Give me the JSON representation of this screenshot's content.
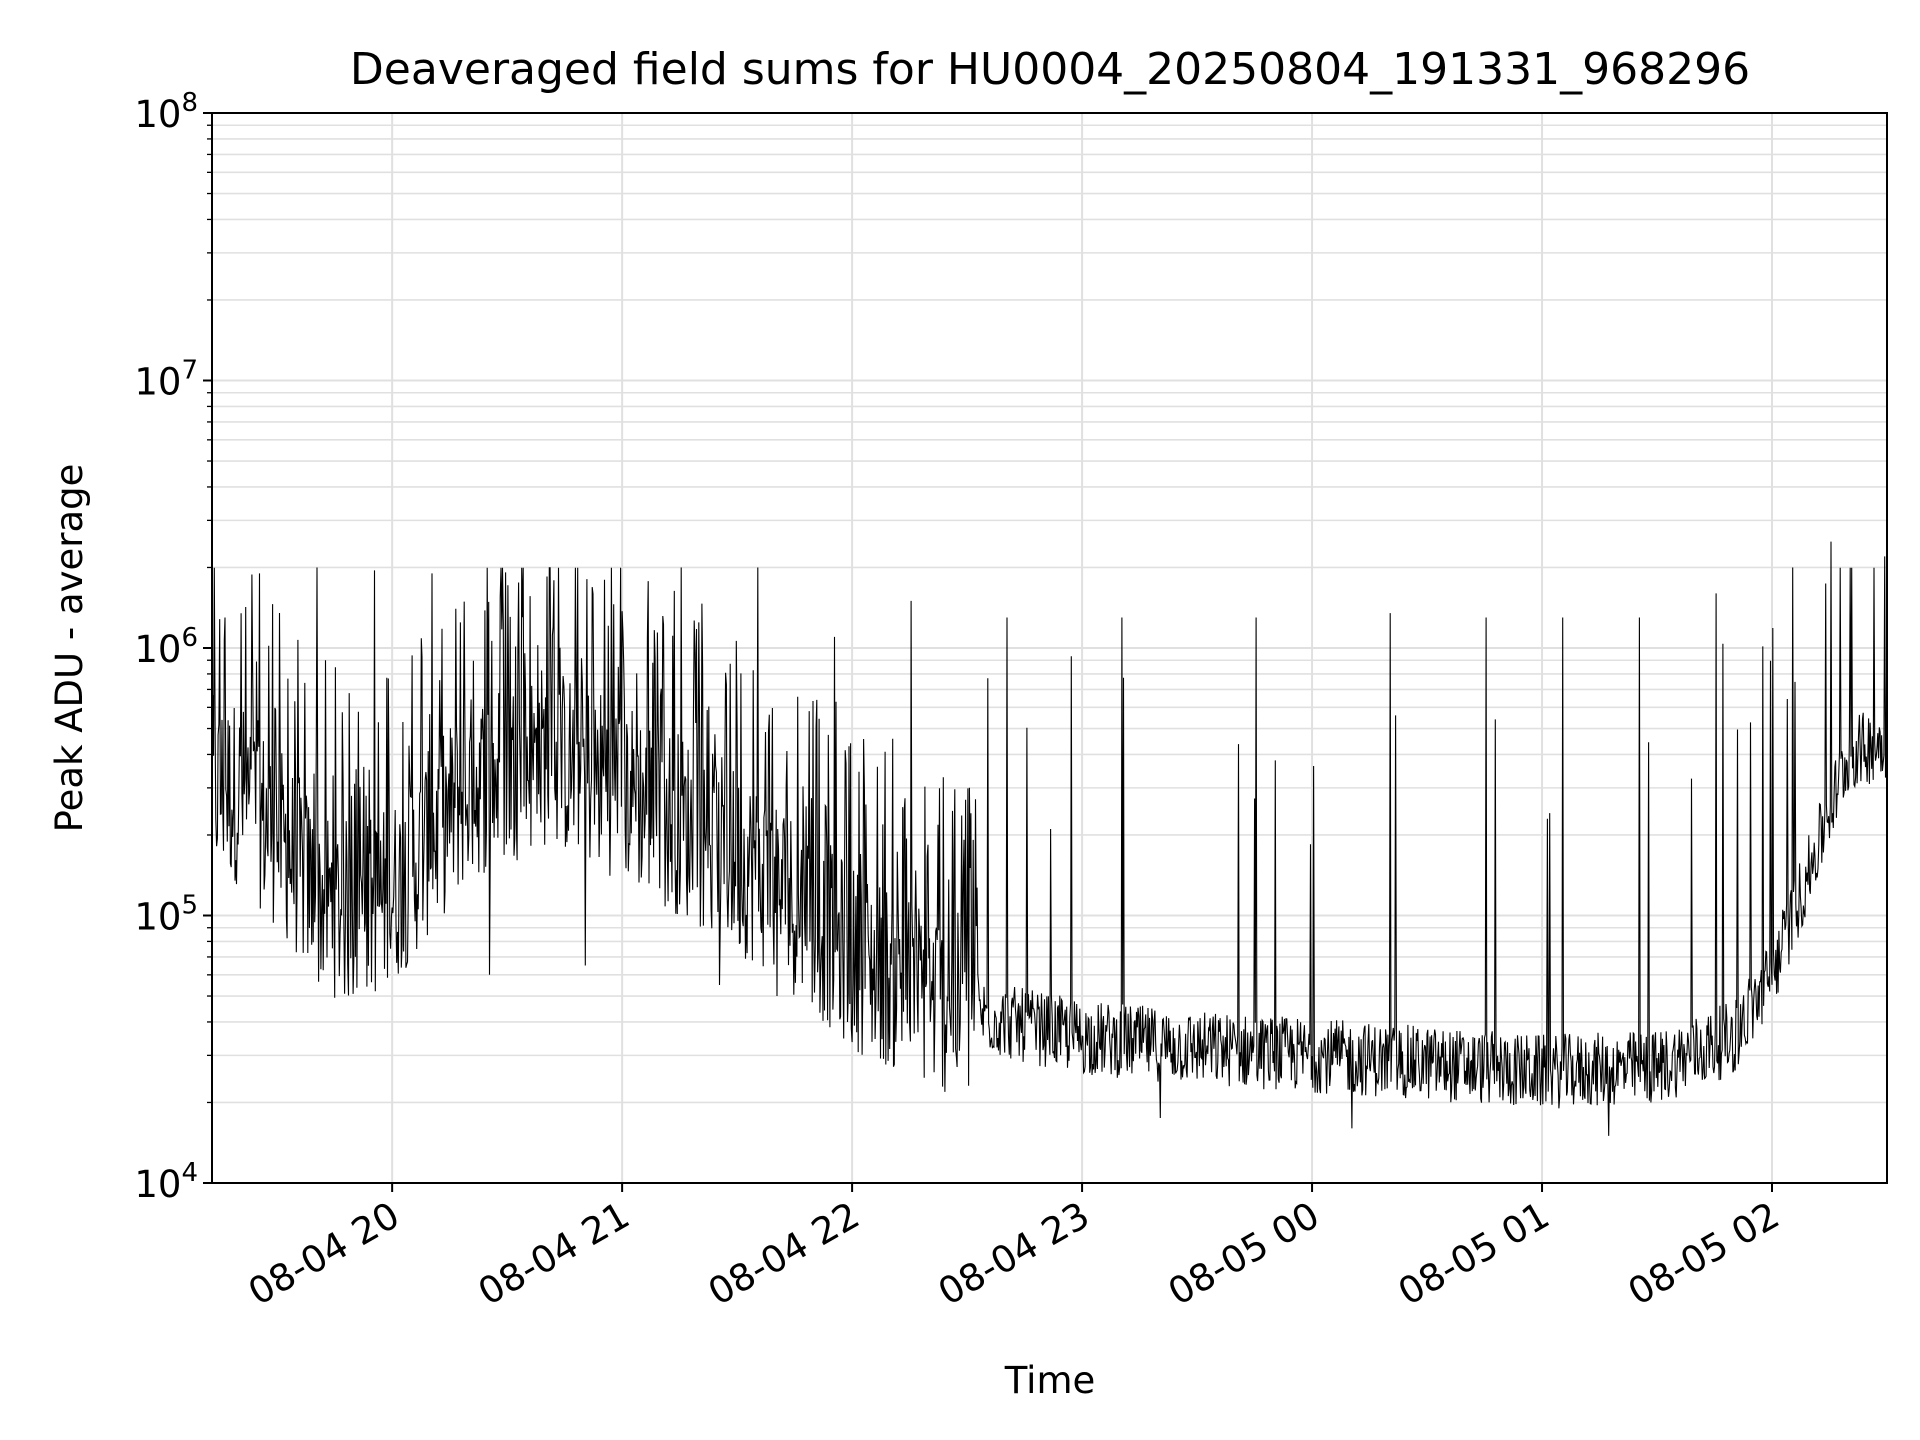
{
  "chart_data": {
    "type": "line",
    "title": "Deaveraged field sums for HU0004_20250804_191331_968296",
    "xlabel": "Time",
    "ylabel": "Peak ADU - average",
    "yscale": "log",
    "ylim": [
      10000,
      100000000
    ],
    "xlim": [
      "2025-08-04 19:13",
      "2025-08-05 02:30"
    ],
    "grid": true,
    "line_color": "#000000",
    "grid_color": "#e0e0e0",
    "x_ticks": [
      {
        "time": "2025-08-04 20:00",
        "label": "08-04 20"
      },
      {
        "time": "2025-08-04 21:00",
        "label": "08-04 21"
      },
      {
        "time": "2025-08-04 22:00",
        "label": "08-04 22"
      },
      {
        "time": "2025-08-04 23:00",
        "label": "08-04 23"
      },
      {
        "time": "2025-08-05 00:00",
        "label": "08-05 00"
      },
      {
        "time": "2025-08-05 01:00",
        "label": "08-05 01"
      },
      {
        "time": "2025-08-05 02:00",
        "label": "08-05 02"
      }
    ],
    "y_ticks": [
      {
        "value": 10000,
        "base": "10",
        "exp": "4"
      },
      {
        "value": 100000,
        "base": "10",
        "exp": "5"
      },
      {
        "value": 1000000,
        "base": "10",
        "exp": "6"
      },
      {
        "value": 10000000,
        "base": "10",
        "exp": "7"
      },
      {
        "value": 100000000,
        "base": "10",
        "exp": "8"
      }
    ],
    "series": [
      {
        "baseline": {
          "time": [
            "2025-08-04 19:13",
            "2025-08-04 19:20",
            "2025-08-04 19:30",
            "2025-08-04 19:40",
            "2025-08-04 19:50",
            "2025-08-04 20:00",
            "2025-08-04 20:20",
            "2025-08-04 20:40",
            "2025-08-04 21:00",
            "2025-08-04 21:20",
            "2025-08-04 21:40",
            "2025-08-04 22:00",
            "2025-08-04 22:20",
            "2025-08-04 22:40",
            "2025-08-04 23:00",
            "2025-08-04 23:30",
            "2025-08-05 00:00",
            "2025-08-05 00:30",
            "2025-08-05 01:00",
            "2025-08-05 01:30",
            "2025-08-05 01:50",
            "2025-08-05 02:00",
            "2025-08-05 02:10",
            "2025-08-05 02:20",
            "2025-08-05 02:30"
          ],
          "value": [
            300000,
            290000,
            200000,
            120000,
            100000,
            120000,
            300000,
            400000,
            300000,
            200000,
            130000,
            70000,
            50000,
            40000,
            35000,
            32000,
            30000,
            28000,
            26000,
            27000,
            35000,
            60000,
            150000,
            400000,
            450000
          ]
        },
        "spikes": [
          {
            "time": "2025-08-04 19:16",
            "value": 1300000
          },
          {
            "time": "2025-08-04 19:25",
            "value": 1900000
          },
          {
            "time": "2025-08-04 19:40",
            "value": 2000000
          },
          {
            "time": "2025-08-04 19:55",
            "value": 1950000
          },
          {
            "time": "2025-08-04 20:10",
            "value": 1900000
          },
          {
            "time": "2025-08-04 20:25",
            "value": 1800000
          },
          {
            "time": "2025-08-04 20:40",
            "value": 1850000
          },
          {
            "time": "2025-08-04 20:55",
            "value": 1800000
          },
          {
            "time": "2025-08-04 21:15",
            "value": 2000000
          },
          {
            "time": "2025-08-04 21:35",
            "value": 2000000
          },
          {
            "time": "2025-08-04 21:55",
            "value": 1100000
          },
          {
            "time": "2025-08-04 22:15",
            "value": 1500000
          },
          {
            "time": "2025-08-04 22:40",
            "value": 1300000
          },
          {
            "time": "2025-08-04 23:10",
            "value": 1300000
          },
          {
            "time": "2025-08-04 23:45",
            "value": 1300000
          },
          {
            "time": "2025-08-05 00:20",
            "value": 1350000
          },
          {
            "time": "2025-08-05 00:45",
            "value": 1300000
          },
          {
            "time": "2025-08-05 01:05",
            "value": 1300000
          },
          {
            "time": "2025-08-05 01:25",
            "value": 1300000
          },
          {
            "time": "2025-08-05 01:45",
            "value": 1600000
          },
          {
            "time": "2025-08-05 02:05",
            "value": 2000000
          },
          {
            "time": "2025-08-05 02:15",
            "value": 2500000
          },
          {
            "time": "2025-08-05 02:29",
            "value": 2200000
          }
        ],
        "dips": [
          {
            "time": "2025-08-04 19:50",
            "value": 70000
          },
          {
            "time": "2025-08-04 20:25",
            "value": 60000
          },
          {
            "time": "2025-08-04 20:50",
            "value": 65000
          },
          {
            "time": "2025-08-04 21:25",
            "value": 55000
          },
          {
            "time": "2025-08-04 21:40",
            "value": 50000
          },
          {
            "time": "2025-08-04 22:20",
            "value": 40000
          },
          {
            "time": "2025-08-04 23:20",
            "value": 17500
          },
          {
            "time": "2025-08-05 00:10",
            "value": 16000
          },
          {
            "time": "2025-08-05 01:17",
            "value": 15000
          }
        ]
      }
    ]
  }
}
